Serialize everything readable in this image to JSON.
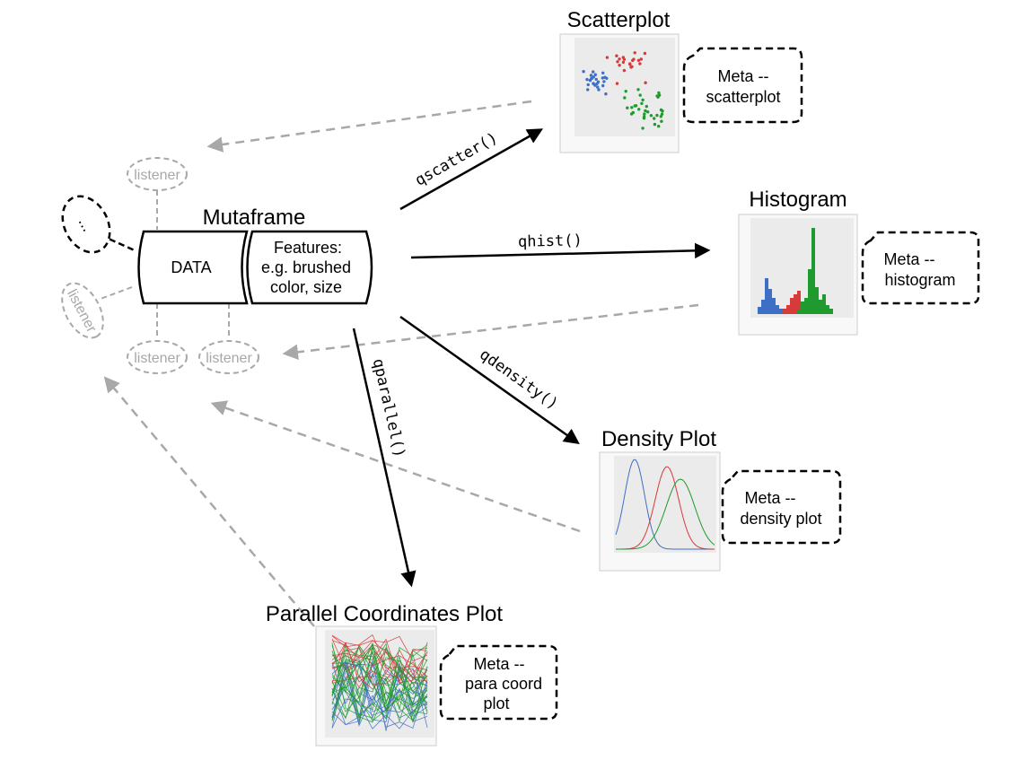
{
  "mutaframe": {
    "title": "Mutaframe",
    "data_label": "DATA",
    "features": [
      "Features:",
      "e.g. brushed",
      "color, size"
    ]
  },
  "listeners": [
    "listener",
    "listener",
    "listener",
    "listener"
  ],
  "ellipsis": "...",
  "functions": {
    "qscatter": "qscatter()",
    "qhist": "qhist()",
    "qdensity": "qdensity()",
    "qparallel": "qparallel()"
  },
  "plots": {
    "scatter": {
      "title": "Scatterplot",
      "meta": [
        "Meta --",
        "scatterplot"
      ]
    },
    "histogram": {
      "title": "Histogram",
      "meta": [
        "Meta --",
        "histogram"
      ]
    },
    "density": {
      "title": "Density Plot",
      "meta": [
        "Meta --",
        "density plot"
      ]
    },
    "parallel": {
      "title": "Parallel Coordinates Plot",
      "meta": [
        "Meta --",
        "para coord",
        "plot"
      ]
    }
  },
  "colors": {
    "blue": "#3d6fc4",
    "red": "#d63a3a",
    "green": "#1f9a2e",
    "plot_bg": "#ebebeb",
    "listener_gray": "#a8a8a8"
  }
}
